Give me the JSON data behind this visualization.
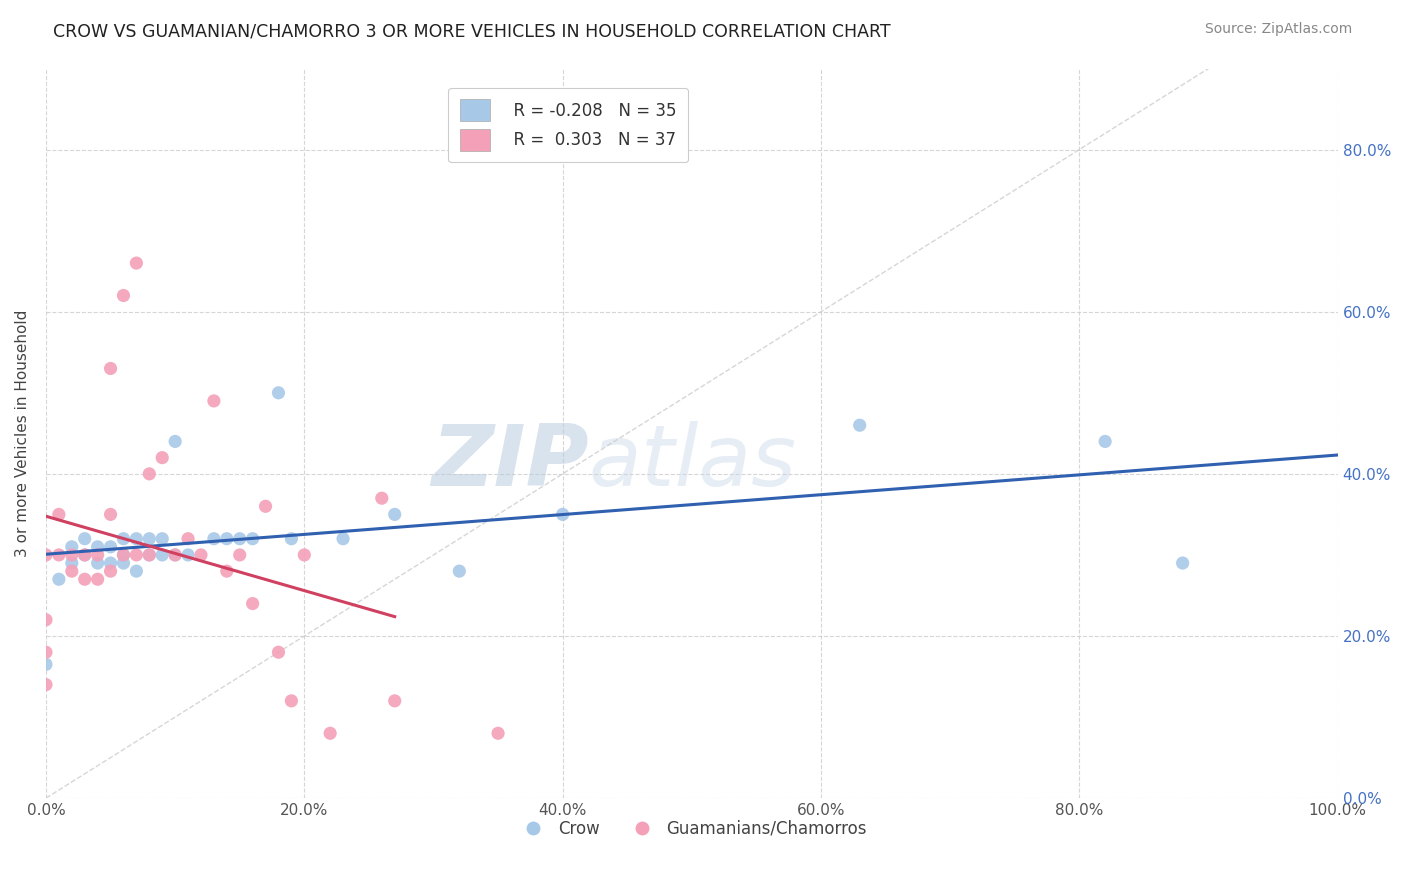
{
  "title": "CROW VS GUAMANIAN/CHAMORRO 3 OR MORE VEHICLES IN HOUSEHOLD CORRELATION CHART",
  "source": "Source: ZipAtlas.com",
  "ylabel": "3 or more Vehicles in Household",
  "xlim": [
    0.0,
    1.0
  ],
  "ylim": [
    0.0,
    0.9
  ],
  "xticks": [
    0.0,
    0.2,
    0.4,
    0.6,
    0.8,
    1.0
  ],
  "yticks": [
    0.0,
    0.2,
    0.4,
    0.6,
    0.8
  ],
  "xticklabels": [
    "0.0%",
    "20.0%",
    "40.0%",
    "60.0%",
    "80.0%",
    "100.0%"
  ],
  "yticklabels_right": [
    "0.0%",
    "20.0%",
    "40.0%",
    "60.0%",
    "80.0%"
  ],
  "crow_R": -0.208,
  "crow_N": 35,
  "guam_R": 0.303,
  "guam_N": 37,
  "crow_color": "#a8c8e8",
  "guam_color": "#f4a0b8",
  "crow_line_color": "#3060b0",
  "guam_line_color": "#d04060",
  "diagonal_color": "#cccccc",
  "watermark_zip": "ZIP",
  "watermark_atlas": "atlas",
  "crow_x": [
    0.0,
    0.01,
    0.02,
    0.02,
    0.03,
    0.03,
    0.04,
    0.04,
    0.05,
    0.05,
    0.06,
    0.06,
    0.06,
    0.07,
    0.07,
    0.08,
    0.08,
    0.09,
    0.09,
    0.1,
    0.1,
    0.11,
    0.13,
    0.14,
    0.15,
    0.16,
    0.18,
    0.19,
    0.23,
    0.27,
    0.32,
    0.4,
    0.63,
    0.82,
    0.88
  ],
  "crow_y": [
    0.165,
    0.27,
    0.29,
    0.31,
    0.3,
    0.32,
    0.29,
    0.31,
    0.29,
    0.31,
    0.29,
    0.3,
    0.32,
    0.28,
    0.32,
    0.3,
    0.32,
    0.3,
    0.32,
    0.3,
    0.44,
    0.3,
    0.32,
    0.32,
    0.32,
    0.32,
    0.5,
    0.32,
    0.32,
    0.35,
    0.28,
    0.35,
    0.46,
    0.44,
    0.29
  ],
  "guam_x": [
    0.0,
    0.0,
    0.0,
    0.0,
    0.01,
    0.01,
    0.02,
    0.02,
    0.03,
    0.03,
    0.04,
    0.04,
    0.05,
    0.05,
    0.05,
    0.06,
    0.06,
    0.07,
    0.07,
    0.08,
    0.08,
    0.09,
    0.1,
    0.11,
    0.12,
    0.13,
    0.14,
    0.15,
    0.16,
    0.17,
    0.18,
    0.19,
    0.2,
    0.22,
    0.26,
    0.27,
    0.35
  ],
  "guam_y": [
    0.14,
    0.18,
    0.22,
    0.3,
    0.3,
    0.35,
    0.28,
    0.3,
    0.27,
    0.3,
    0.27,
    0.3,
    0.28,
    0.35,
    0.53,
    0.3,
    0.62,
    0.3,
    0.66,
    0.3,
    0.4,
    0.42,
    0.3,
    0.32,
    0.3,
    0.49,
    0.28,
    0.3,
    0.24,
    0.36,
    0.18,
    0.12,
    0.3,
    0.08,
    0.37,
    0.12,
    0.08
  ],
  "crow_trend_x": [
    0.0,
    1.0
  ],
  "guam_trend_x": [
    0.0,
    0.27
  ]
}
